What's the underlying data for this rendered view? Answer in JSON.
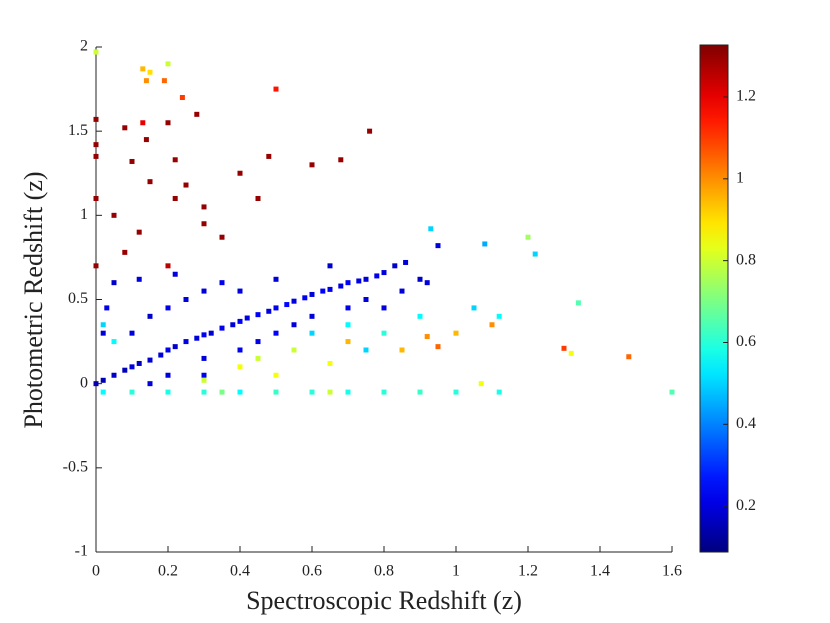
{
  "chart_data": {
    "type": "scatter",
    "xlabel": "Spectroscopic Redshift (z)",
    "ylabel": "Photometric Redshift (z)",
    "x": [
      0.02,
      0.05,
      0.08,
      0.1,
      0.12,
      0.15,
      0.18,
      0.2,
      0.22,
      0.25,
      0.28,
      0.3,
      0.32,
      0.35,
      0.38,
      0.4,
      0.42,
      0.45,
      0.48,
      0.5,
      0.53,
      0.55,
      0.58,
      0.6,
      0.63,
      0.65,
      0.68,
      0.7,
      0.73,
      0.75,
      0.78,
      0.8,
      0.83,
      0.86,
      0.9,
      0.1,
      0.15,
      0.2,
      0.25,
      0.3,
      0.05,
      0.12,
      0.22,
      0.35,
      0.3,
      0.4,
      0.5,
      0.55,
      0.45,
      0.6,
      0.7,
      0.75,
      0.65,
      0.5,
      0.4,
      0.2,
      0.3,
      0.15,
      0.0,
      0.02,
      0.03,
      0.95,
      0.92,
      0.85,
      0.8,
      0.6,
      0.7,
      0.75,
      0.8,
      0.9,
      1.05,
      1.12,
      1.22,
      1.2,
      1.34,
      1.08,
      0.02,
      0.05,
      0.93,
      0.55,
      0.65,
      0.7,
      0.85,
      0.92,
      0.95,
      1.0,
      1.1,
      1.3,
      1.32,
      1.48,
      0.4,
      0.45,
      0.3,
      0.5,
      0.15,
      0.2,
      0.13,
      0.14,
      0.19,
      0.24,
      0.5,
      1.07,
      0.0,
      0.0,
      0.0,
      0.0,
      0.0,
      0.08,
      0.1,
      0.14,
      0.15,
      0.2,
      0.22,
      0.25,
      0.28,
      0.3,
      0.4,
      0.45,
      0.48,
      0.6,
      0.68,
      0.76,
      0.12,
      0.08,
      0.2,
      0.3,
      0.05,
      0.0,
      0.35,
      0.13,
      0.22,
      0.02,
      0.1,
      0.2,
      0.3,
      0.4,
      0.5,
      0.6,
      0.7,
      0.8,
      0.9,
      1.0,
      1.6,
      1.12,
      0.35,
      0.65
    ],
    "y": [
      0.02,
      0.05,
      0.08,
      0.1,
      0.12,
      0.14,
      0.17,
      0.2,
      0.22,
      0.25,
      0.27,
      0.29,
      0.3,
      0.33,
      0.35,
      0.37,
      0.39,
      0.41,
      0.43,
      0.45,
      0.47,
      0.49,
      0.51,
      0.53,
      0.55,
      0.56,
      0.58,
      0.6,
      0.61,
      0.62,
      0.64,
      0.66,
      0.7,
      0.72,
      0.62,
      0.3,
      0.4,
      0.45,
      0.5,
      0.55,
      0.6,
      0.62,
      0.65,
      0.6,
      0.15,
      0.2,
      0.3,
      0.35,
      0.25,
      0.4,
      0.45,
      0.5,
      0.7,
      0.62,
      0.55,
      0.05,
      0.05,
      0.0,
      0.0,
      0.3,
      0.45,
      0.82,
      0.6,
      0.55,
      0.45,
      0.3,
      0.35,
      0.2,
      0.3,
      0.4,
      0.45,
      0.4,
      0.77,
      0.87,
      0.48,
      0.83,
      0.35,
      0.25,
      0.92,
      0.2,
      0.12,
      0.25,
      0.2,
      0.28,
      0.22,
      0.3,
      0.35,
      0.21,
      0.18,
      0.16,
      0.1,
      0.15,
      0.02,
      0.05,
      1.85,
      1.9,
      1.87,
      1.8,
      1.8,
      1.7,
      1.75,
      0.0,
      1.97,
      1.57,
      1.42,
      1.35,
      1.1,
      1.52,
      1.32,
      1.45,
      1.2,
      1.55,
      1.1,
      1.18,
      1.6,
      1.05,
      1.25,
      1.1,
      1.35,
      1.3,
      1.33,
      1.5,
      0.9,
      0.78,
      0.7,
      0.95,
      1.0,
      0.7,
      0.87,
      1.55,
      1.33,
      -0.05,
      -0.05,
      -0.05,
      -0.05,
      -0.05,
      -0.05,
      -0.05,
      -0.05,
      -0.05,
      -0.05,
      -0.05,
      -0.05,
      -0.05,
      -0.05,
      -0.05
    ],
    "color_values": [
      0.15,
      0.18,
      0.16,
      0.2,
      0.17,
      0.19,
      0.2,
      0.22,
      0.18,
      0.21,
      0.2,
      0.23,
      0.19,
      0.22,
      0.2,
      0.24,
      0.21,
      0.23,
      0.2,
      0.22,
      0.25,
      0.21,
      0.23,
      0.2,
      0.24,
      0.22,
      0.2,
      0.23,
      0.21,
      0.2,
      0.22,
      0.2,
      0.18,
      0.2,
      0.18,
      0.2,
      0.18,
      0.22,
      0.2,
      0.2,
      0.18,
      0.2,
      0.2,
      0.22,
      0.2,
      0.22,
      0.24,
      0.2,
      0.22,
      0.2,
      0.22,
      0.2,
      0.18,
      0.2,
      0.2,
      0.2,
      0.22,
      0.2,
      0.15,
      0.2,
      0.22,
      0.2,
      0.2,
      0.2,
      0.2,
      0.5,
      0.55,
      0.5,
      0.6,
      0.55,
      0.5,
      0.55,
      0.5,
      0.75,
      0.65,
      0.45,
      0.5,
      0.55,
      0.5,
      0.8,
      0.85,
      0.95,
      0.95,
      1.0,
      1.05,
      0.95,
      1.0,
      1.1,
      0.85,
      1.05,
      0.85,
      0.8,
      0.8,
      0.85,
      0.9,
      0.8,
      0.95,
      1.0,
      1.05,
      1.1,
      1.15,
      0.85,
      0.8,
      1.3,
      1.3,
      1.3,
      1.3,
      1.3,
      1.3,
      1.3,
      1.3,
      1.3,
      1.3,
      1.3,
      1.3,
      1.3,
      1.3,
      1.3,
      1.3,
      1.3,
      1.3,
      1.3,
      1.3,
      1.3,
      1.25,
      1.3,
      1.3,
      1.3,
      1.3,
      1.2,
      1.3,
      0.55,
      0.6,
      0.58,
      0.6,
      0.55,
      0.62,
      0.6,
      0.58,
      0.6,
      0.62,
      0.6,
      0.65,
      0.58,
      0.7,
      0.8
    ],
    "colormap": "jet",
    "clim": [
      0.088,
      1.327
    ],
    "cticks": [
      0.2,
      0.4,
      0.6,
      0.8,
      1,
      1.2
    ],
    "xlim": [
      0,
      1.6
    ],
    "xticks": [
      0,
      0.2,
      0.4,
      0.6,
      0.8,
      1,
      1.2,
      1.4,
      1.6
    ],
    "ylim": [
      -1,
      2
    ],
    "yticks": [
      -1,
      -0.5,
      0,
      0.5,
      1,
      1.5,
      2
    ]
  }
}
